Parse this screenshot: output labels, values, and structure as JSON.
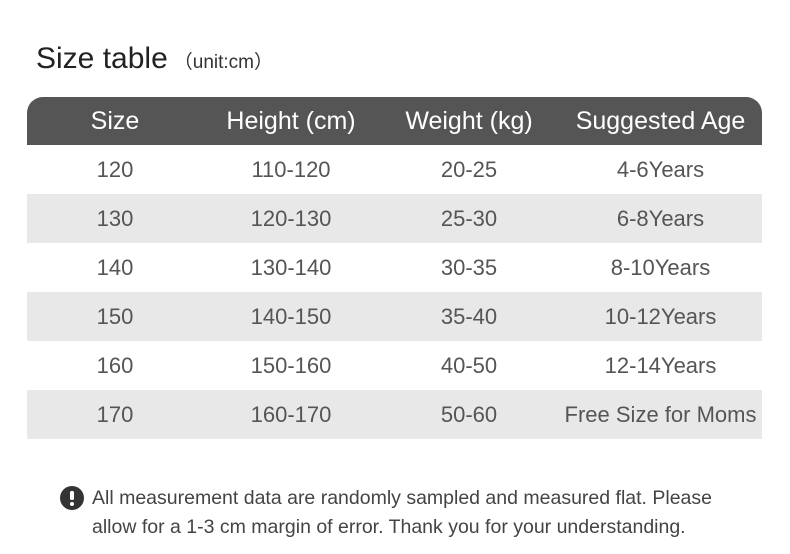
{
  "header": {
    "title": "Size table",
    "subtitle": "（unit:cm）"
  },
  "table": {
    "columns": [
      "Size",
      "Height (cm)",
      "Weight (kg)",
      "Suggested Age"
    ],
    "rows": [
      [
        "120",
        "110-120",
        "20-25",
        "4-6Years"
      ],
      [
        "130",
        "120-130",
        "25-30",
        "6-8Years"
      ],
      [
        "140",
        "130-140",
        "30-35",
        "8-10Years"
      ],
      [
        "150",
        "140-150",
        "35-40",
        "10-12Years"
      ],
      [
        "160",
        "150-160",
        "40-50",
        "12-14Years"
      ],
      [
        "170",
        "160-170",
        "50-60",
        "Free Size for Moms"
      ]
    ]
  },
  "note": {
    "lines": [
      "All measurement data are randomly sampled and measured flat. Please",
      "allow for a 1-3 cm margin of error. Thank you for your understanding."
    ]
  }
}
